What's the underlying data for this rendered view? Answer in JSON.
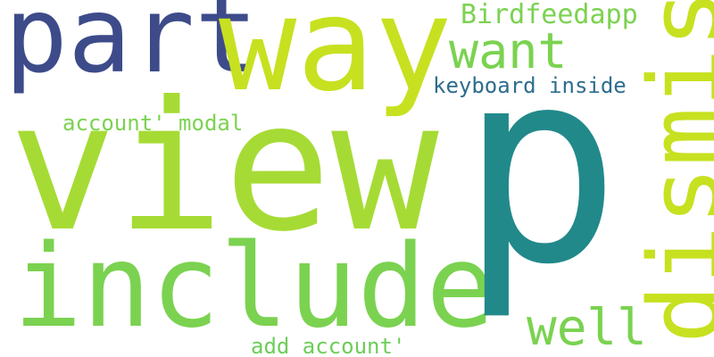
{
  "words": [
    {
      "text": "p",
      "color": "#21898a"
    },
    {
      "text": "view",
      "color": "#a6db35"
    },
    {
      "text": "include",
      "color": "#7bd250"
    },
    {
      "text": "part",
      "color": "#3d4b8a"
    },
    {
      "text": "way",
      "color": "#c7e120"
    },
    {
      "text": "want",
      "color": "#7bd250"
    },
    {
      "text": "dismissed",
      "color": "#c7e120"
    },
    {
      "text": "well",
      "color": "#7bd250"
    },
    {
      "text": "Birdfeedapp",
      "color": "#7bd250"
    },
    {
      "text": "keyboard inside",
      "color": "#2e6d8e"
    },
    {
      "text": "account' modal",
      "color": "#7bd250"
    },
    {
      "text": "add account'",
      "color": "#6dcd59"
    }
  ]
}
